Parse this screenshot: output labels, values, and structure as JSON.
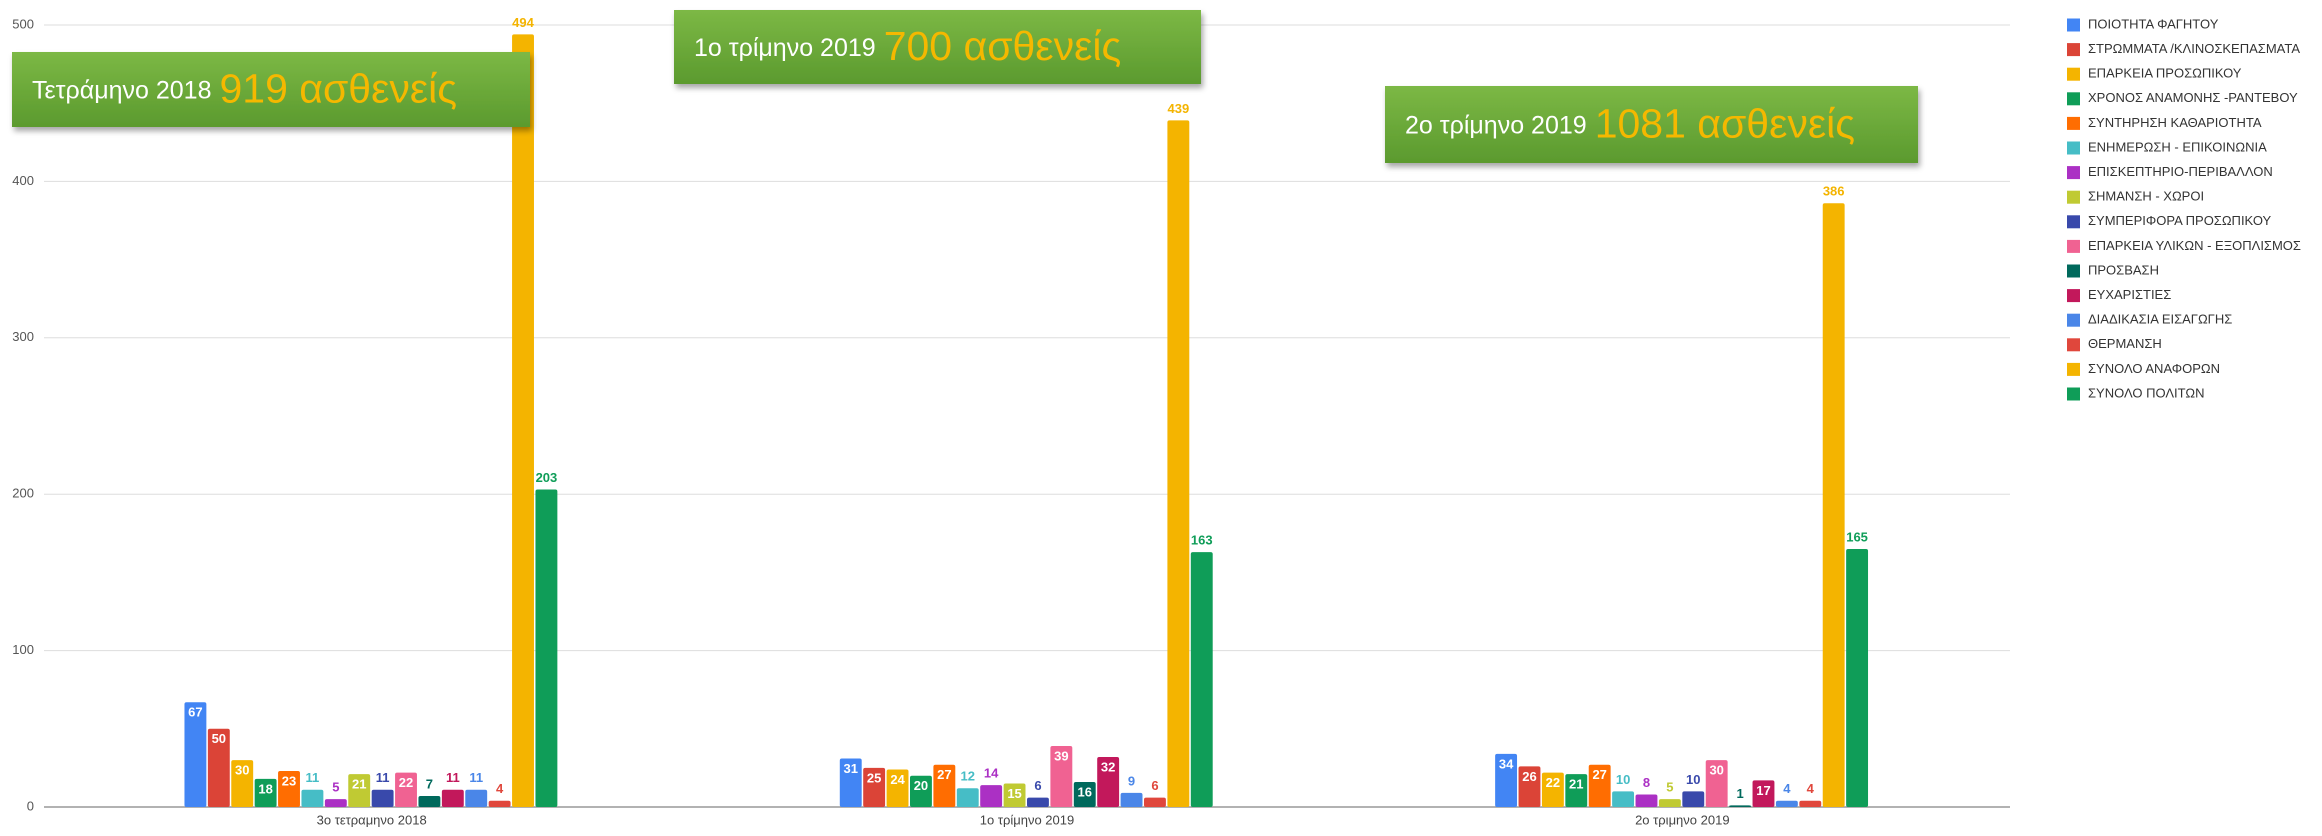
{
  "chart_data": {
    "type": "bar",
    "categories": [
      "3ο τετραμηνο 2018",
      "1ο τρίμηνο 2019",
      "2ο τριμηνο 2019"
    ],
    "ylim": [
      0,
      500
    ],
    "yticks": [
      0,
      100,
      200,
      300,
      400,
      500
    ],
    "grid": true,
    "legend": "right",
    "series": [
      {
        "name": "ΠΟΙΟΤΗΤΑ ΦΑΓΗΤΟΥ",
        "color": "#4285f4",
        "values": [
          67,
          31,
          34
        ]
      },
      {
        "name": "ΣΤΡΩΜΜΑΤΑ /ΚΛΙΝΟΣΚΕΠΑΣΜΑΤΑ",
        "color": "#db4437",
        "values": [
          50,
          25,
          26
        ]
      },
      {
        "name": "ΕΠΑΡΚΕΙΑ ΠΡΟΣΩΠΙΚΟΥ",
        "color": "#f4b400",
        "values": [
          30,
          24,
          22
        ]
      },
      {
        "name": "ΧΡΟΝΟΣ ΑΝΑΜΟΝΗΣ -ΡΑΝΤΕΒΟΥ",
        "color": "#0f9d58",
        "values": [
          18,
          20,
          21
        ]
      },
      {
        "name": "ΣΥΝΤΗΡΗΣΗ ΚΑΘΑΡΙΟΤΗΤΑ",
        "color": "#ff6d01",
        "values": [
          23,
          27,
          27
        ]
      },
      {
        "name": "ΕΝΗΜΕΡΩΣΗ - ΕΠΙΚΟΙΝΩΝΙΑ",
        "color": "#46bdc6",
        "values": [
          11,
          12,
          10
        ]
      },
      {
        "name": "ΕΠΙΣΚΕΠΤΗΡΙΟ-ΠΕΡΙΒΑΛΛΟΝ",
        "color": "#ab30c4",
        "values": [
          5,
          14,
          8
        ]
      },
      {
        "name": "ΣΗΜΑΝΣΗ - ΧΩΡΟΙ",
        "color": "#c0ca33",
        "values": [
          21,
          15,
          5
        ]
      },
      {
        "name": "ΣΥΜΠΕΡΙΦΟΡΑ ΠΡΟΣΩΠΙΚΟΥ",
        "color": "#3949ab",
        "values": [
          11,
          6,
          10
        ]
      },
      {
        "name": "ΕΠΑΡΚΕΙΑ ΥΛΙΚΩΝ  - ΕΞΟΠΛΙΣΜΟΣ",
        "color": "#f06292",
        "values": [
          22,
          39,
          30
        ]
      },
      {
        "name": "ΠΡΟΣΒΑΣΗ",
        "color": "#00695c",
        "values": [
          7,
          16,
          1
        ]
      },
      {
        "name": "ΕΥΧΑΡΙΣΤΙΕΣ",
        "color": "#c2185b",
        "values": [
          11,
          32,
          17
        ]
      },
      {
        "name": "ΔΙΑΔΙΚΑΣΙΑ ΕΙΣΑΓΩΓΗΣ",
        "color": "#4a86e8",
        "values": [
          11,
          9,
          4
        ]
      },
      {
        "name": "ΘΕΡΜΑΝΣΗ",
        "color": "#e0473c",
        "values": [
          4,
          6,
          4
        ]
      },
      {
        "name": "ΣΥΝΟΛΟ ΑΝΑΦΟΡΩΝ",
        "color": "#f4b400",
        "values": [
          494,
          439,
          386
        ]
      },
      {
        "name": "ΣΥΝΟΛΟ ΠΟΛΙΤΩΝ",
        "color": "#0f9d58",
        "values": [
          203,
          163,
          165
        ]
      }
    ],
    "annotations": [
      {
        "text": "Τετράμηνο 2018",
        "highlight": "919 ασθενείς"
      },
      {
        "text": "1ο τρίμηνο 2019",
        "highlight": "700 ασθενείς"
      },
      {
        "text": "2ο τρίμηνο 2019",
        "highlight": "1081 ασθενείς"
      }
    ]
  }
}
